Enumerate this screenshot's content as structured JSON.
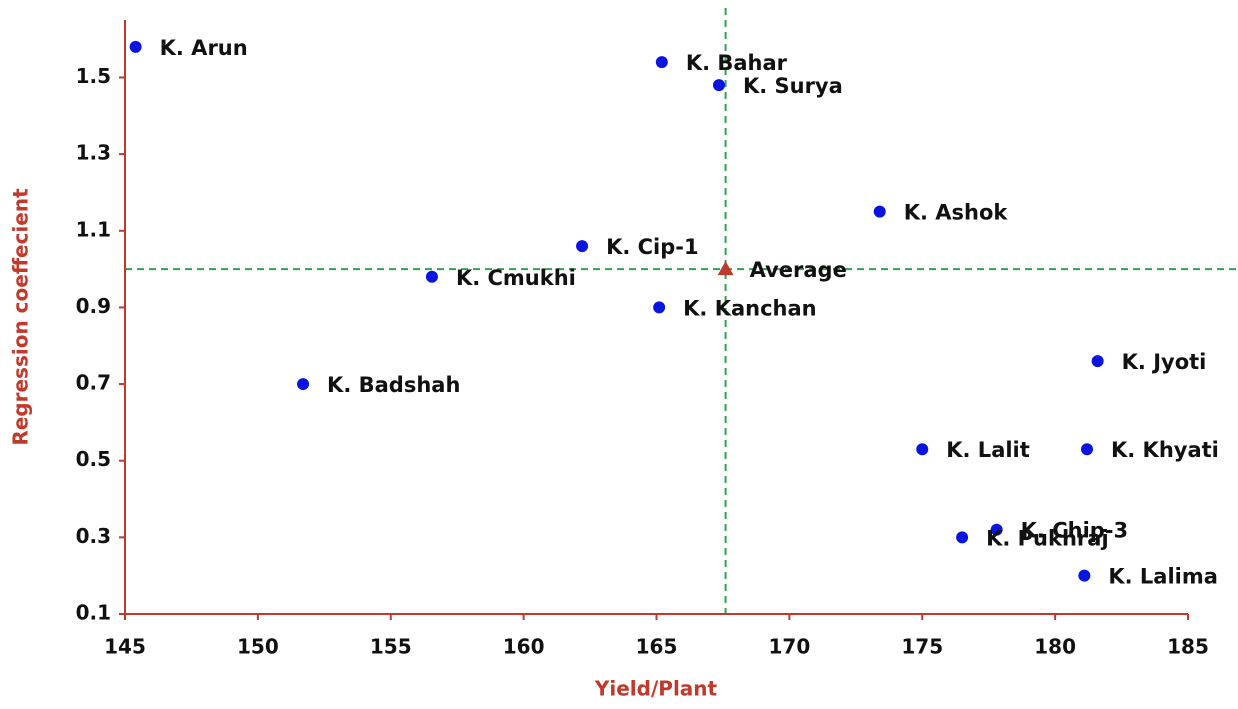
{
  "chart_data": {
    "type": "scatter",
    "x_label": "Yield/Plant",
    "y_label": "Regression coeffecient",
    "xlim": [
      145,
      185
    ],
    "xticks": [
      145,
      150,
      155,
      160,
      165,
      170,
      175,
      180,
      185
    ],
    "ylim": [
      0.1,
      1.65
    ],
    "yticks": [
      0.1,
      0.3,
      0.5,
      0.7,
      0.9,
      1.1,
      1.3,
      1.5
    ],
    "axis_color": "#c0392b",
    "reference_line_color": "#2ea44f",
    "series": [
      {
        "color": "#0a14e0",
        "labels": [
          "K. Arun",
          "K. Bahar",
          "K. Surya",
          "K. Ashok",
          "K. Cip-1",
          "K. Cmukhi",
          "K. Kanchan",
          "K. Badshah",
          "K. Jyoti",
          "K. Lalit",
          "K. Khyati",
          "K. Chip-3",
          "K. Pukhraj",
          "K. Lalima"
        ],
        "x": [
          145.4,
          165.2,
          167.35,
          173.4,
          162.2,
          156.55,
          165.1,
          151.7,
          181.6,
          175.0,
          181.2,
          177.8,
          176.5,
          181.1
        ],
        "values": [
          1.58,
          1.54,
          1.48,
          1.15,
          1.06,
          0.98,
          0.9,
          0.7,
          0.76,
          0.53,
          0.53,
          0.32,
          0.3,
          0.2
        ]
      },
      {
        "color": "#c0392b",
        "marker": "triangle",
        "labels": [
          "Average"
        ],
        "x": [
          167.6
        ],
        "values": [
          1.0
        ]
      }
    ]
  }
}
